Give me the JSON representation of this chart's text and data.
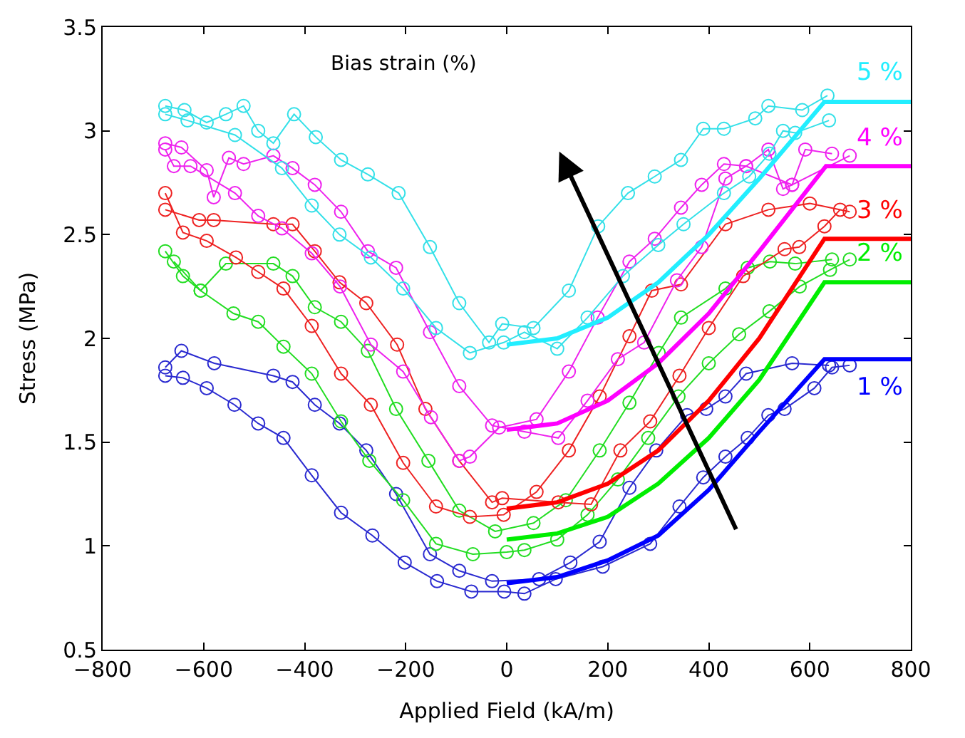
{
  "chart_data": {
    "type": "line",
    "xlabel": "Applied Field (kA/m)",
    "ylabel": "Stress (MPa)",
    "xlim": [
      -800,
      800
    ],
    "xticks": [
      -800,
      -600,
      -400,
      -200,
      0,
      200,
      400,
      600,
      800
    ],
    "ylim": [
      0.5,
      3.5
    ],
    "yticks": [
      0.5,
      1,
      1.5,
      2,
      2.5,
      3,
      3.5
    ],
    "legend": false,
    "marker": "circle",
    "annotations": [
      "Bias strain (%)"
    ],
    "series": [
      {
        "color": "#2a2ad0",
        "x": [
          -676,
          -641,
          -594,
          -539,
          -492,
          -442,
          -386,
          -328,
          -266,
          -202,
          -138,
          -70,
          -5,
          35,
          97,
          190,
          284,
          342,
          389,
          433,
          477,
          518,
          550,
          609,
          644,
          679
        ],
        "values": [
          1.82,
          1.81,
          1.76,
          1.68,
          1.59,
          1.52,
          1.34,
          1.16,
          1.05,
          0.92,
          0.83,
          0.78,
          0.78,
          0.77,
          0.84,
          0.9,
          1.01,
          1.19,
          1.33,
          1.43,
          1.52,
          1.63,
          1.66,
          1.76,
          1.86,
          1.87
        ]
      },
      {
        "color": "#2a2ad0",
        "x": [
          -676,
          -644,
          -579,
          -462,
          -424,
          -380,
          -331,
          -278,
          -219,
          -152,
          -94,
          -29,
          64,
          126,
          184,
          243,
          296,
          357,
          395,
          433,
          474,
          565,
          638
        ],
        "values": [
          1.86,
          1.94,
          1.88,
          1.82,
          1.79,
          1.68,
          1.59,
          1.46,
          1.25,
          0.96,
          0.88,
          0.83,
          0.84,
          0.92,
          1.02,
          1.28,
          1.46,
          1.63,
          1.66,
          1.72,
          1.83,
          1.88,
          1.87
        ]
      },
      {
        "color": "#22dd22",
        "x": [
          -676,
          -641,
          -606,
          -541,
          -492,
          -442,
          -386,
          -328,
          -272,
          -205,
          -140,
          -67,
          0,
          35,
          100,
          160,
          220,
          280,
          340,
          400,
          460,
          520,
          580,
          640,
          679
        ],
        "values": [
          2.42,
          2.3,
          2.23,
          2.12,
          2.08,
          1.96,
          1.83,
          1.6,
          1.41,
          1.22,
          1.01,
          0.96,
          0.97,
          0.98,
          1.03,
          1.15,
          1.32,
          1.52,
          1.72,
          1.88,
          2.02,
          2.13,
          2.25,
          2.33,
          2.38
        ]
      },
      {
        "color": "#22dd22",
        "x": [
          -659,
          -606,
          -556,
          -462,
          -424,
          -380,
          -328,
          -275,
          -219,
          -155,
          -94,
          -23,
          53,
          117,
          184,
          243,
          301,
          345,
          433,
          477,
          521,
          571,
          644
        ],
        "values": [
          2.37,
          2.23,
          2.36,
          2.36,
          2.3,
          2.15,
          2.08,
          1.94,
          1.66,
          1.41,
          1.17,
          1.07,
          1.11,
          1.22,
          1.46,
          1.69,
          1.93,
          2.1,
          2.24,
          2.34,
          2.37,
          2.36,
          2.38
        ]
      },
      {
        "color": "#ee2222",
        "x": [
          -676,
          -641,
          -594,
          -536,
          -492,
          -442,
          -386,
          -328,
          -269,
          -205,
          -140,
          -73,
          -6,
          59,
          123,
          184,
          243,
          287,
          345,
          433,
          518,
          600,
          679
        ],
        "values": [
          2.7,
          2.51,
          2.47,
          2.39,
          2.32,
          2.24,
          2.06,
          1.83,
          1.68,
          1.4,
          1.19,
          1.14,
          1.15,
          1.26,
          1.46,
          1.72,
          2.01,
          2.23,
          2.26,
          2.55,
          2.62,
          2.65,
          2.61
        ]
      },
      {
        "color": "#ee2222",
        "x": [
          -676,
          -609,
          -580,
          -462,
          -424,
          -380,
          -331,
          -278,
          -217,
          -161,
          -94,
          -29,
          -9,
          102,
          167,
          225,
          284,
          342,
          400,
          468,
          550,
          579,
          629,
          660
        ],
        "values": [
          2.62,
          2.57,
          2.57,
          2.55,
          2.55,
          2.42,
          2.27,
          2.17,
          1.97,
          1.66,
          1.41,
          1.21,
          1.23,
          1.21,
          1.2,
          1.46,
          1.6,
          1.82,
          2.05,
          2.3,
          2.43,
          2.44,
          2.54,
          2.62
        ]
      },
      {
        "color": "#ee22ee",
        "x": [
          -676,
          -644,
          -594,
          -580,
          -550,
          -521,
          -462,
          -424,
          -380,
          -328,
          -275,
          -219,
          -152,
          -94,
          -29,
          35,
          102,
          160,
          220,
          272,
          337,
          386,
          433,
          474,
          518,
          547,
          565,
          591,
          644
        ],
        "values": [
          2.94,
          2.92,
          2.81,
          2.68,
          2.87,
          2.84,
          2.88,
          2.82,
          2.74,
          2.61,
          2.42,
          2.34,
          2.03,
          1.77,
          1.58,
          1.55,
          1.52,
          1.7,
          1.9,
          1.98,
          2.28,
          2.44,
          2.77,
          2.83,
          2.91,
          2.72,
          2.74,
          2.91,
          2.89
        ]
      },
      {
        "color": "#ee22ee",
        "x": [
          -676,
          -659,
          -626,
          -538,
          -492,
          -445,
          -386,
          -330,
          -269,
          -205,
          -150,
          -94,
          -73,
          -15,
          59,
          123,
          180,
          243,
          293,
          345,
          386,
          430,
          474,
          565,
          679
        ],
        "values": [
          2.91,
          2.83,
          2.83,
          2.7,
          2.59,
          2.53,
          2.41,
          2.25,
          1.97,
          1.84,
          1.62,
          1.41,
          1.43,
          1.57,
          1.61,
          1.84,
          2.1,
          2.37,
          2.48,
          2.63,
          2.74,
          2.84,
          2.83,
          2.74,
          2.88
        ]
      },
      {
        "color": "#33e0e8",
        "x": [
          -676,
          -638,
          -594,
          -556,
          -521,
          -492,
          -462,
          -421,
          -378,
          -328,
          -275,
          -214,
          -152,
          -94,
          -35,
          -9,
          53,
          123,
          181,
          240,
          293,
          345,
          389,
          430,
          492,
          518,
          585,
          635
        ],
        "values": [
          3.12,
          3.1,
          3.04,
          3.08,
          3.12,
          3.0,
          2.94,
          3.08,
          2.97,
          2.86,
          2.79,
          2.7,
          2.44,
          2.17,
          1.98,
          2.07,
          2.05,
          2.23,
          2.54,
          2.7,
          2.78,
          2.86,
          3.01,
          3.01,
          3.06,
          3.12,
          3.1,
          3.17
        ]
      },
      {
        "color": "#33e0e8",
        "x": [
          -676,
          -632,
          -538,
          -445,
          -386,
          -331,
          -269,
          -205,
          -140,
          -73,
          -6,
          35,
          100,
          160,
          230,
          300,
          350,
          430,
          480,
          520,
          547,
          571,
          638
        ],
        "values": [
          3.08,
          3.05,
          2.98,
          2.82,
          2.64,
          2.5,
          2.39,
          2.24,
          2.05,
          1.93,
          1.98,
          2.03,
          1.95,
          2.1,
          2.3,
          2.45,
          2.55,
          2.7,
          2.78,
          2.89,
          3.0,
          2.99,
          3.05
        ]
      },
      {
        "name": "1 %",
        "color": "#0000ff",
        "marker": "none",
        "x": [
          0,
          100,
          200,
          300,
          400,
          500,
          629,
          800
        ],
        "values": [
          0.82,
          0.85,
          0.93,
          1.05,
          1.27,
          1.55,
          1.9,
          1.9
        ]
      },
      {
        "name": "2 %",
        "color": "#00ee00",
        "marker": "none",
        "x": [
          0,
          100,
          200,
          300,
          400,
          500,
          629,
          800
        ],
        "values": [
          1.03,
          1.06,
          1.14,
          1.3,
          1.52,
          1.8,
          2.27,
          2.27
        ]
      },
      {
        "name": "3 %",
        "color": "#ff0000",
        "marker": "none",
        "x": [
          0,
          100,
          200,
          300,
          400,
          500,
          629,
          800
        ],
        "values": [
          1.18,
          1.21,
          1.3,
          1.46,
          1.7,
          2.0,
          2.48,
          2.48
        ]
      },
      {
        "name": "4 %",
        "color": "#ff00ff",
        "marker": "none",
        "x": [
          0,
          100,
          200,
          300,
          400,
          500,
          632,
          800
        ],
        "values": [
          1.56,
          1.59,
          1.7,
          1.88,
          2.12,
          2.42,
          2.83,
          2.83
        ]
      },
      {
        "name": "5 %",
        "color": "#22eeff",
        "marker": "none",
        "x": [
          0,
          100,
          200,
          300,
          400,
          500,
          629,
          800
        ],
        "values": [
          1.97,
          2.0,
          2.1,
          2.27,
          2.5,
          2.77,
          3.14,
          3.14
        ]
      }
    ]
  }
}
